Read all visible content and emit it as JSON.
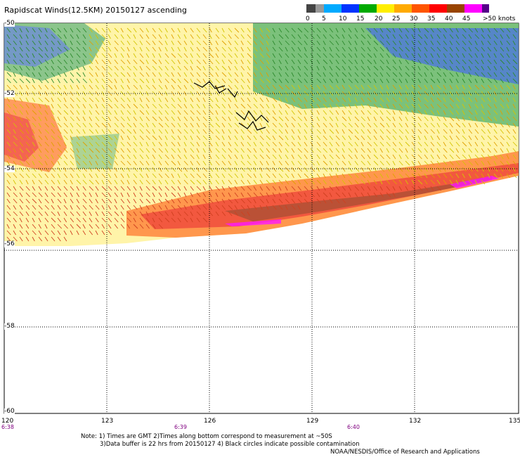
{
  "title": "Rapidscat Winds(12.5KM) 20150127 ascending",
  "legend": {
    "labels": [
      "0",
      "5",
      "10",
      "15",
      "20",
      "25",
      "30",
      "35",
      "40",
      "45",
      ">50 knots"
    ],
    "colors": [
      "#444444",
      "#999999",
      "#00aaff",
      "#0033ff",
      "#00aa00",
      "#ffee00",
      "#ffaa00",
      "#ff5500",
      "#ff0000",
      "#994400",
      "#ff00ff",
      "#550088"
    ]
  },
  "axes": {
    "x_ticks": [
      "120",
      "123",
      "126",
      "129",
      "132",
      "135"
    ],
    "y_ticks": [
      "-50",
      "-52",
      "-54",
      "-56",
      "-58",
      "-60"
    ],
    "times": [
      "6:38",
      "6:39",
      "6:40"
    ]
  },
  "notes": {
    "line1": "Note: 1) Times are GMT 2)Times along bottom correspond to measurement at ~50S",
    "line2": "3)Data buffer is 22 hrs from 20150127 4) Black circles indicate possible contamination",
    "credit": "NOAA/NESDIS/Office of Research and Applications"
  }
}
